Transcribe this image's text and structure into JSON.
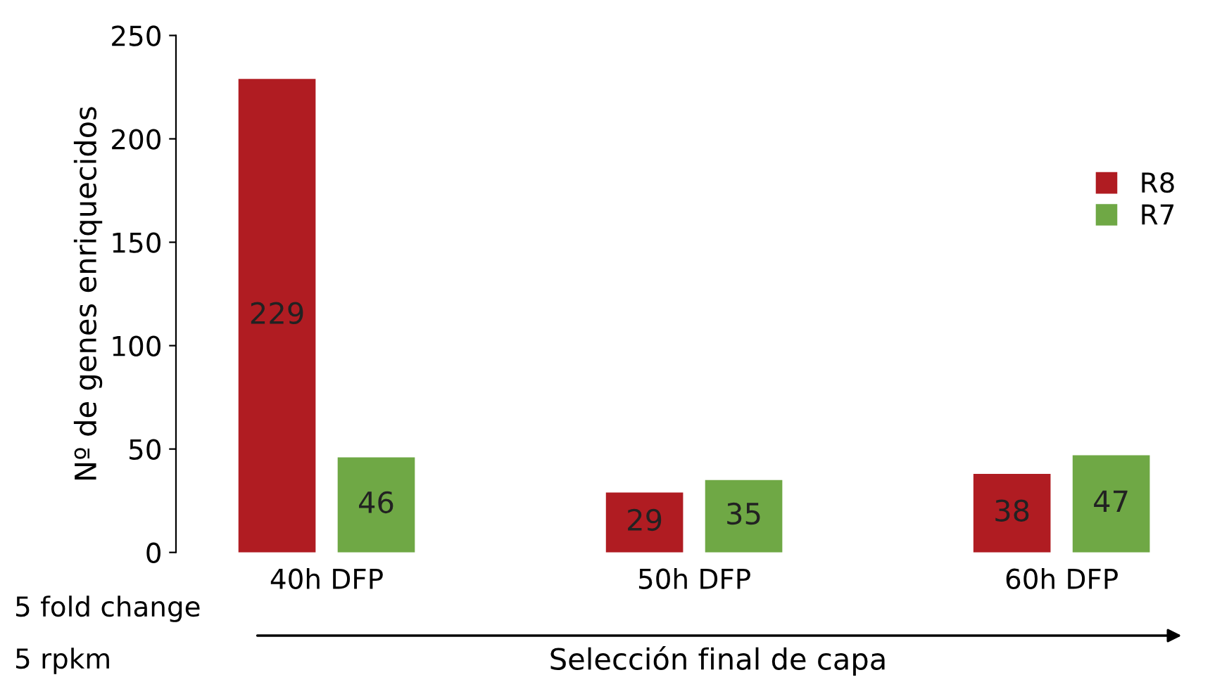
{
  "chart_data": {
    "type": "bar",
    "ylabel": "Nº de genes enriquecidos",
    "xlabel": "Selección final de capa",
    "categories": [
      "40h DFP",
      "50h DFP",
      "60h DFP"
    ],
    "series": [
      {
        "name": "R8",
        "color": "#b01c22",
        "values": [
          229,
          29,
          38
        ]
      },
      {
        "name": "R7",
        "color": "#6fa845",
        "values": [
          46,
          35,
          47
        ]
      }
    ],
    "ylim": [
      0,
      250
    ],
    "yticks": [
      0,
      50,
      100,
      150,
      200,
      250
    ],
    "data_labels": true,
    "grid": false,
    "legend": "right",
    "annotations": [
      "5 fold change",
      "5 rpkm"
    ]
  }
}
